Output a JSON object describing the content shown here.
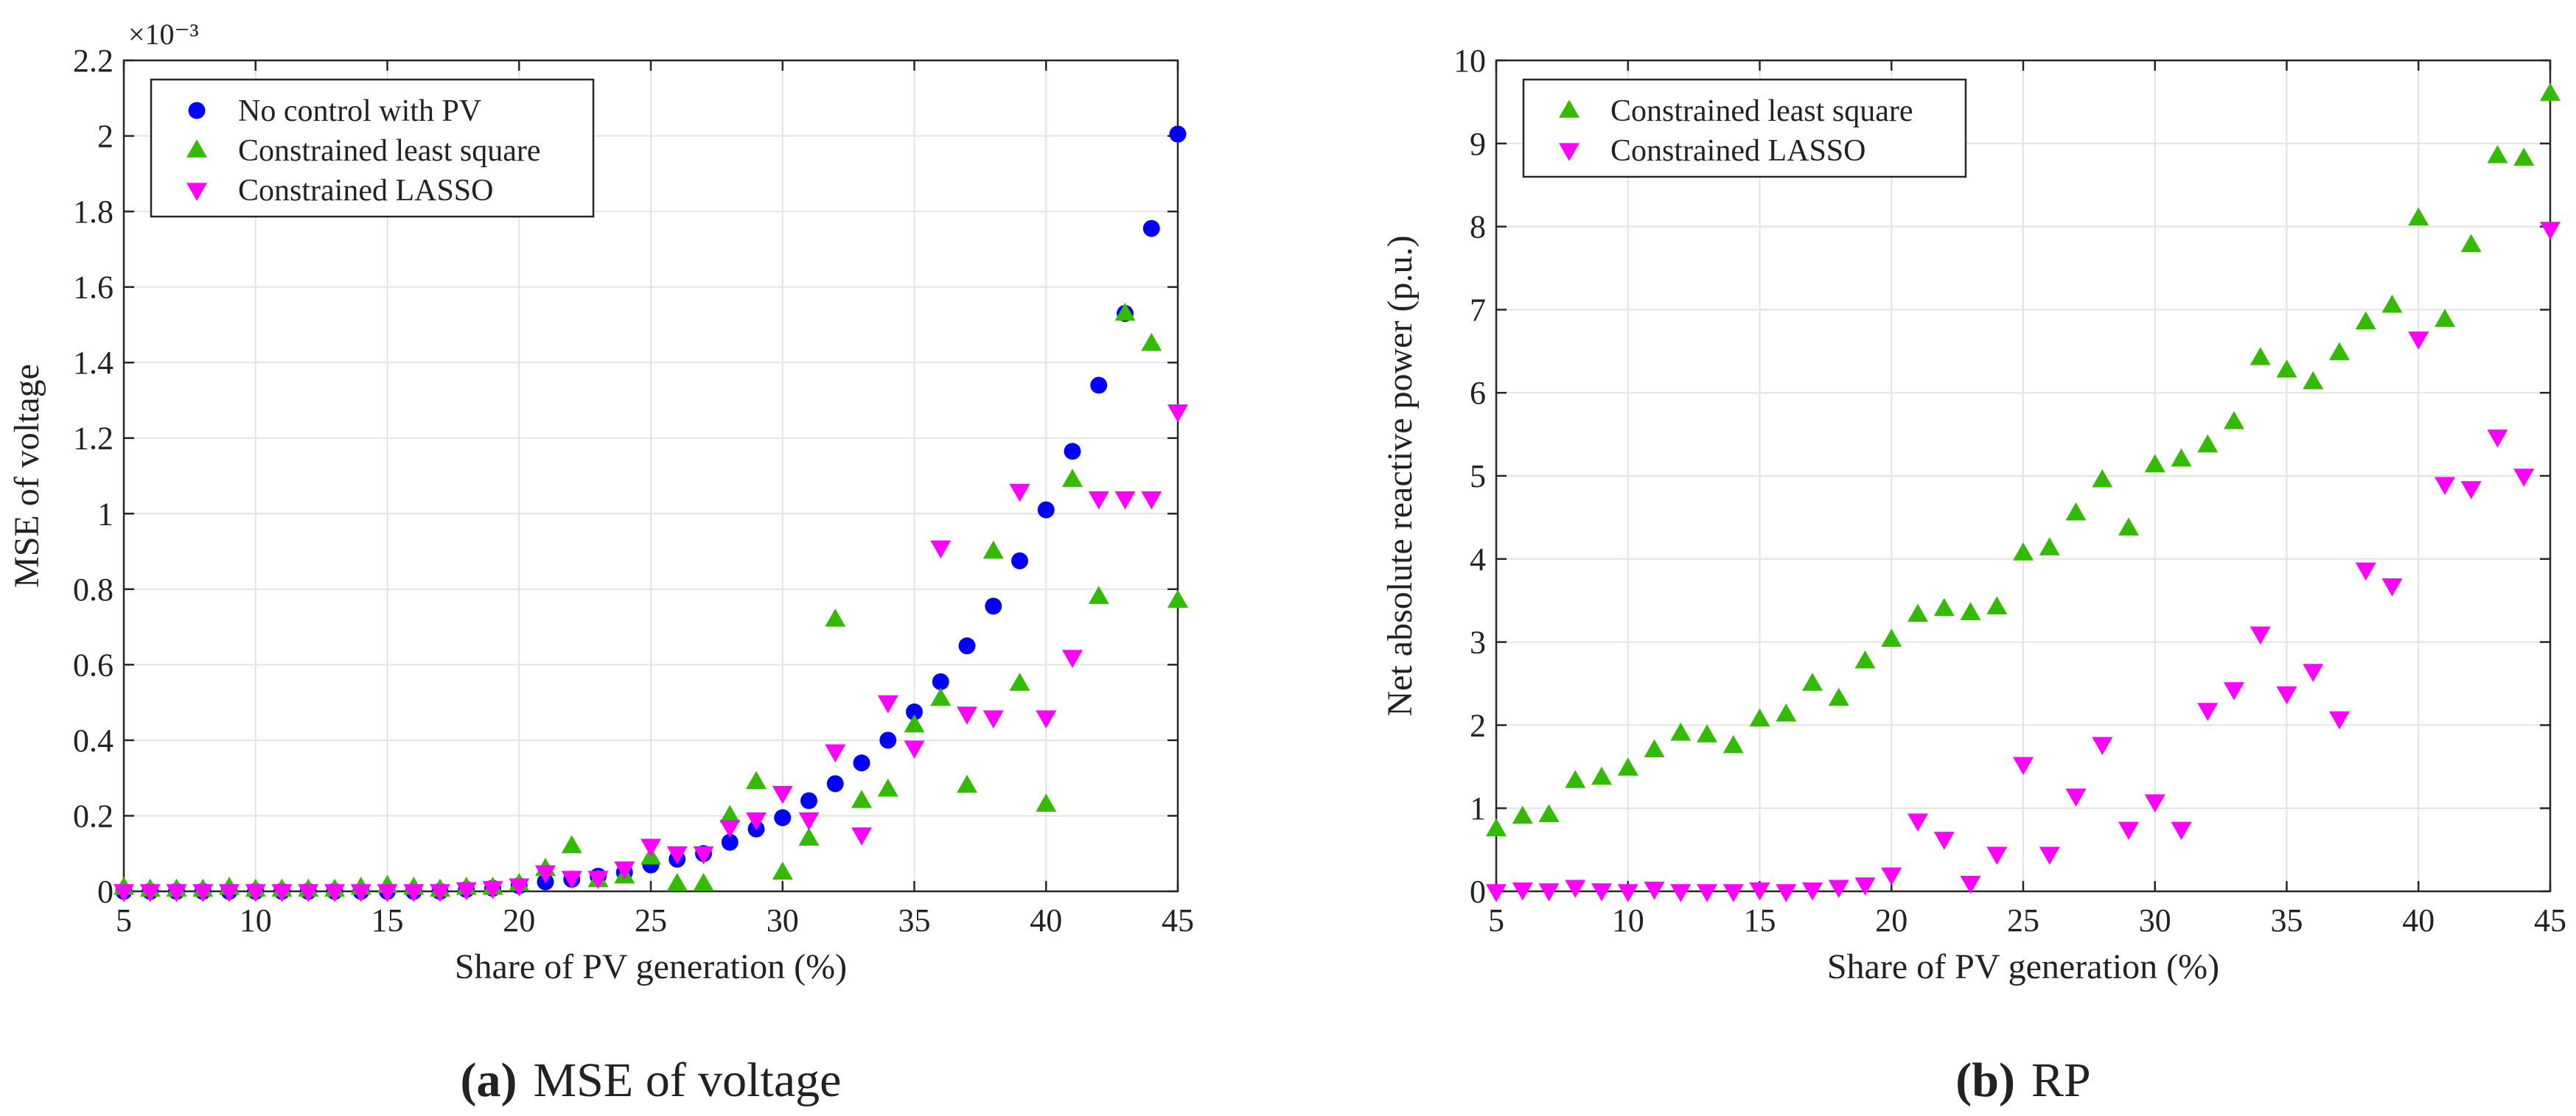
{
  "chart_data": [
    {
      "type": "scatter",
      "caption": {
        "label": "(a)",
        "text": "MSE of voltage"
      },
      "xlabel": "Share of PV generation (%)",
      "ylabel": "MSE of voltage",
      "y_exponent": "×10⁻³",
      "xlim": [
        5,
        45
      ],
      "ylim": [
        0,
        2.2
      ],
      "xticks": [
        5,
        10,
        15,
        20,
        25,
        30,
        35,
        40,
        45
      ],
      "yticks": [
        0,
        0.2,
        0.4,
        0.6,
        0.8,
        1,
        1.2,
        1.4,
        1.6,
        1.8,
        2,
        2.2
      ],
      "grid": true,
      "legend_position": "top-left",
      "series": [
        {
          "name": "No control with PV",
          "marker": "circle",
          "color": "#0000ff",
          "x": [
            5,
            6,
            7,
            8,
            9,
            10,
            11,
            12,
            13,
            14,
            15,
            16,
            17,
            18,
            19,
            20,
            21,
            22,
            23,
            24,
            25,
            26,
            27,
            28,
            29,
            30,
            31,
            32,
            33,
            34,
            35,
            36,
            37,
            38,
            39,
            40,
            41,
            42,
            43,
            44,
            45
          ],
          "y": [
            0,
            0,
            0,
            0,
            0,
            0,
            0,
            0,
            0,
            0,
            0,
            0,
            0,
            0.005,
            0.008,
            0.015,
            0.025,
            0.032,
            0.04,
            0.05,
            0.07,
            0.085,
            0.1,
            0.13,
            0.165,
            0.195,
            0.24,
            0.285,
            0.34,
            0.4,
            0.475,
            0.555,
            0.65,
            0.755,
            0.875,
            1.01,
            1.165,
            1.34,
            1.53,
            1.755,
            2.005
          ]
        },
        {
          "name": "Constrained least square",
          "marker": "triangle-up",
          "color": "#33bb00",
          "x": [
            5,
            6,
            7,
            8,
            9,
            10,
            11,
            12,
            13,
            14,
            15,
            16,
            17,
            18,
            19,
            20,
            21,
            22,
            23,
            24,
            25,
            26,
            27,
            28,
            29,
            30,
            31,
            32,
            33,
            34,
            35,
            36,
            37,
            38,
            39,
            40,
            41,
            42,
            43,
            44,
            45
          ],
          "y": [
            0.01,
            0.005,
            0.005,
            0.005,
            0.01,
            0.005,
            0.005,
            0.005,
            0.005,
            0.01,
            0.015,
            0.01,
            0.005,
            0.01,
            0.01,
            0.02,
            0.06,
            0.12,
            0.03,
            0.04,
            0.09,
            0.02,
            0.02,
            0.2,
            0.29,
            0.05,
            0.14,
            0.72,
            0.24,
            0.27,
            0.44,
            0.51,
            0.28,
            0.9,
            0.55,
            0.23,
            1.09,
            0.78,
            1.53,
            1.45,
            0.77
          ]
        },
        {
          "name": "Constrained LASSO",
          "marker": "triangle-down",
          "color": "#ff00ff",
          "x": [
            5,
            6,
            7,
            8,
            9,
            10,
            11,
            12,
            13,
            14,
            15,
            16,
            17,
            18,
            19,
            20,
            21,
            22,
            23,
            24,
            25,
            26,
            27,
            28,
            29,
            30,
            31,
            32,
            33,
            34,
            35,
            36,
            37,
            38,
            39,
            40,
            41,
            42,
            43,
            44,
            45
          ],
          "y": [
            0,
            0,
            0,
            0,
            0,
            0,
            0,
            0,
            0,
            0,
            0,
            0,
            0,
            0.005,
            0.008,
            0.015,
            0.05,
            0.035,
            0.035,
            0.06,
            0.12,
            0.1,
            0.1,
            0.17,
            0.19,
            0.26,
            0.19,
            0.37,
            0.15,
            0.5,
            0.38,
            0.91,
            0.47,
            0.46,
            1.06,
            0.46,
            0.62,
            1.04,
            1.04,
            1.04,
            1.27
          ]
        }
      ]
    },
    {
      "type": "scatter",
      "caption": {
        "label": "(b)",
        "text": "RP"
      },
      "xlabel": "Share of PV generation (%)",
      "ylabel": "Net absolute reactive power (p.u.)",
      "xlim": [
        5,
        45
      ],
      "ylim": [
        0,
        10
      ],
      "xticks": [
        5,
        10,
        15,
        20,
        25,
        30,
        35,
        40,
        45
      ],
      "yticks": [
        0,
        1,
        2,
        3,
        4,
        5,
        6,
        7,
        8,
        9,
        10
      ],
      "grid": true,
      "legend_position": "top-left",
      "series": [
        {
          "name": "Constrained least square",
          "marker": "triangle-up",
          "color": "#33bb00",
          "x": [
            5,
            6,
            7,
            8,
            9,
            10,
            11,
            12,
            13,
            14,
            15,
            16,
            17,
            18,
            19,
            20,
            21,
            22,
            23,
            24,
            25,
            26,
            27,
            28,
            29,
            30,
            31,
            32,
            33,
            34,
            35,
            36,
            37,
            38,
            39,
            40,
            41,
            42,
            43,
            44,
            45
          ],
          "y": [
            0.75,
            0.9,
            0.92,
            1.33,
            1.37,
            1.48,
            1.7,
            1.9,
            1.88,
            1.75,
            2.07,
            2.13,
            2.5,
            2.32,
            2.77,
            3.03,
            3.33,
            3.4,
            3.35,
            3.42,
            4.07,
            4.13,
            4.55,
            4.95,
            4.37,
            5.13,
            5.2,
            5.37,
            5.65,
            6.42,
            6.27,
            6.13,
            6.48,
            6.85,
            7.05,
            8.1,
            6.88,
            7.78,
            8.85,
            8.82,
            9.6
          ]
        },
        {
          "name": "Constrained LASSO",
          "marker": "triangle-down",
          "color": "#ff00ff",
          "x": [
            5,
            6,
            7,
            8,
            9,
            10,
            11,
            12,
            13,
            14,
            15,
            16,
            17,
            18,
            19,
            20,
            21,
            22,
            23,
            24,
            25,
            26,
            27,
            28,
            29,
            30,
            31,
            32,
            33,
            34,
            35,
            36,
            37,
            38,
            39,
            40,
            41,
            42,
            43,
            44,
            45
          ],
          "y": [
            0,
            0.02,
            0.01,
            0.05,
            0.01,
            0,
            0.03,
            0,
            0,
            0,
            0.02,
            0,
            0.02,
            0.05,
            0.08,
            0.2,
            0.85,
            0.63,
            0.1,
            0.45,
            1.53,
            0.45,
            1.15,
            1.77,
            0.75,
            1.08,
            0.75,
            2.18,
            2.43,
            3.1,
            2.38,
            2.65,
            2.08,
            3.87,
            3.68,
            6.65,
            4.9,
            4.85,
            5.47,
            5,
            7.97
          ]
        }
      ]
    }
  ]
}
